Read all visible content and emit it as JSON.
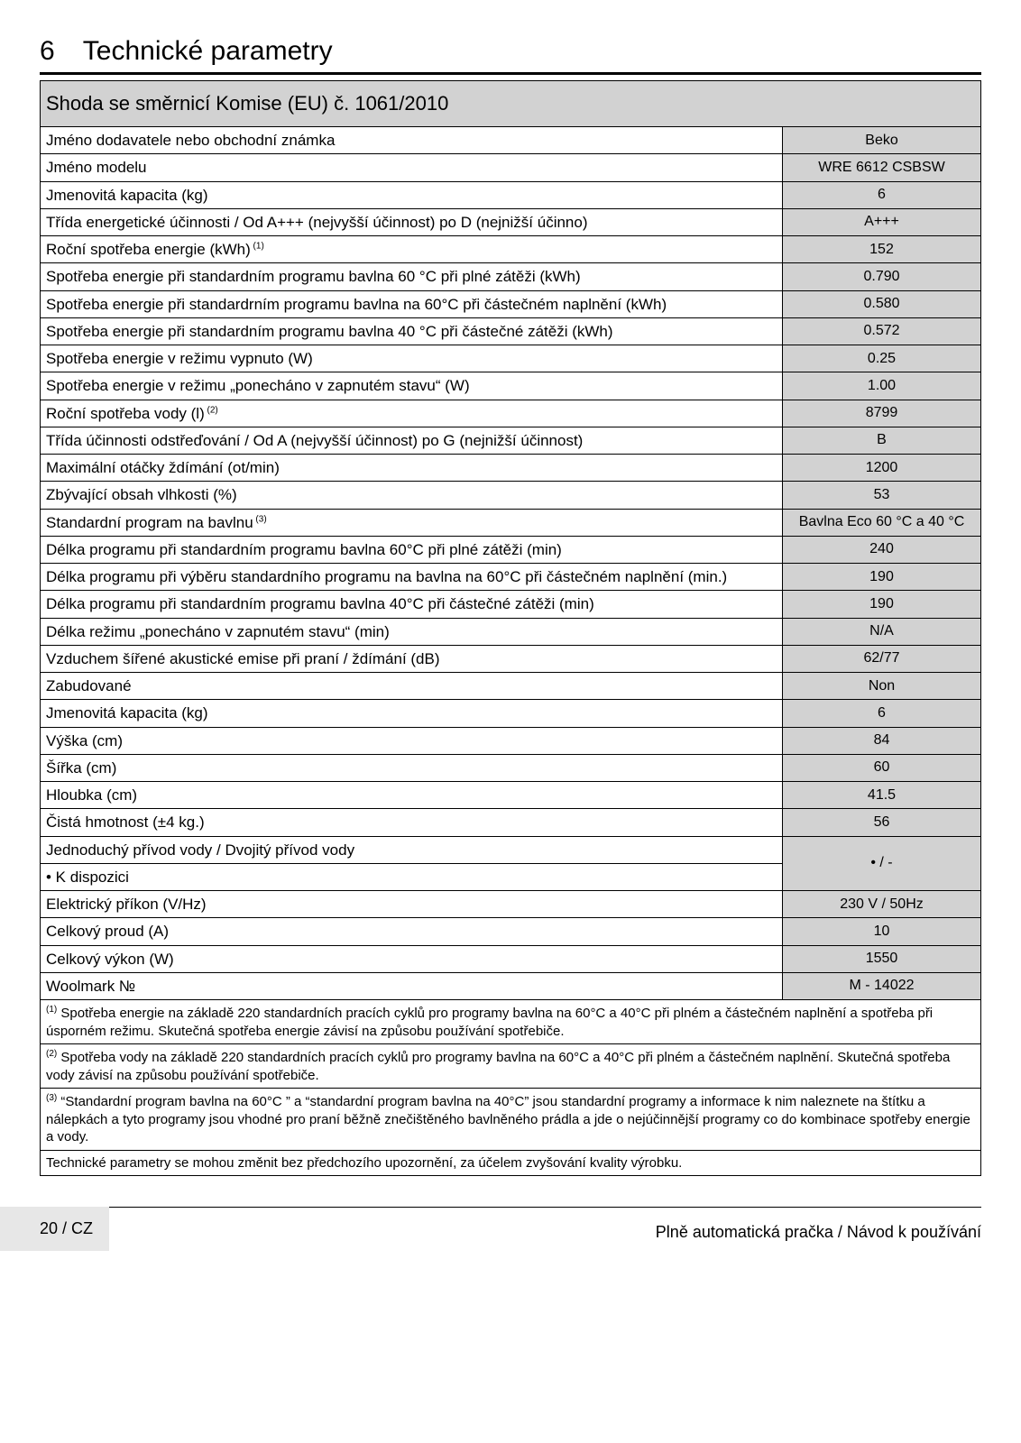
{
  "heading": {
    "number": "6",
    "title": "Technické parametry"
  },
  "table_header": "Shoda se směrnicí Komise (EU) č. 1061/2010",
  "rows": [
    {
      "label": "Jméno dodavatele nebo obchodní znám­ka",
      "value": "Beko"
    },
    {
      "label": "Jméno modelu",
      "value": "WRE 6612 CSBSW"
    },
    {
      "label": "Jmenovitá kapacita (kg)",
      "value": "6"
    },
    {
      "label": "Třída energetické účinnosti / Od A+++ (nejvyšší účinnost) po D (nejnižší účinno)",
      "value": "A+++"
    },
    {
      "label": "Roční spotřeba energie (kWh)",
      "sup": "(1)",
      "value": "152"
    },
    {
      "label": "Spotřeba energie při standardním programu bavlna 60 °C při plné zátěži (kWh)",
      "value": "0.790"
    },
    {
      "label": "Spotřeba energie při standardrním programu bavlna na 60°C při částečném naplnění (kWh)",
      "value": "0.580"
    },
    {
      "label": "Spotřeba energie při standardním programu bavlna 40 °C při částečné zátěži (kWh)",
      "value": "0.572"
    },
    {
      "label": "Spotřeba energie v režimu vypnuto (W)",
      "value": "0.25"
    },
    {
      "label": "Spotřeba energie v režimu „ponecháno v zapnutém stavu“ (W)",
      "value": "1.00"
    },
    {
      "label": "Roční spotřeba vody (l)",
      "sup": "(2)",
      "value": "8799"
    },
    {
      "label": "Třída účinnosti odstřeďování / Od A (nejvyšší účinnost) po G (nejnižší účinnost)",
      "value": "B"
    },
    {
      "label": "Maximální otáčky ždímání (ot/min)",
      "value": "1200"
    },
    {
      "label": "Zbývající obsah vlhkosti (%)",
      "value": "53"
    },
    {
      "label": "Standardní program na bavlnu",
      "sup": "(3)",
      "value": "Bavlna Eco 60 °C a 40 °C"
    },
    {
      "label": "Délka programu při standardním programu bavlna 60°C při plné zátěži (min)",
      "value": "240"
    },
    {
      "label": "Délka programu při výběru standardního programu na bavlna na 60°C při částečném naplnění (min.)",
      "value": "190"
    },
    {
      "label": "Délka programu při standardním programu bavlna 40°C při částečné zátěži (min)",
      "value": "190"
    },
    {
      "label": "Délka režimu „ponecháno v zapnutém stavu“ (min)",
      "value": "N/A"
    },
    {
      "label": "Vzduchem šířené akustické emise při praní / ždímání (dB)",
      "value": "62/77"
    },
    {
      "label": "Zabudované",
      "value": "Non"
    },
    {
      "label": "Jmenovitá kapacita (kg)",
      "value": "6"
    },
    {
      "label": "Výška (cm)",
      "value": "84"
    },
    {
      "label": "Šířka (cm)",
      "value": "60"
    },
    {
      "label": "Hloubka (cm)",
      "value": "41.5"
    },
    {
      "label": "Čistá hmotnost (±4 kg.)",
      "value": "56"
    }
  ],
  "water_inlet": {
    "label": "Jednoduchý přívod vody / Dvojitý přívod vody",
    "sublabel": "• K dispozici",
    "value": "• / -"
  },
  "rows2": [
    {
      "label": "Elektrický příkon (V/Hz)",
      "value": "230 V / 50Hz"
    },
    {
      "label": "Celkový proud (A)",
      "value": "10"
    },
    {
      "label": "Celkový výkon (W)",
      "value": "1550"
    },
    {
      "label": "Woolmark №",
      "value": "M - 14022"
    }
  ],
  "notes": [
    {
      "sup": "(1)",
      "text": " Spotřeba energie na základě 220 standardních pracích cyklů pro programy bavlna na 60°C a 40°C při plném a částečném naplnění a spotřeba při úsporném režimu. Skutečná spotřeba energie závisí na způsobu používání spotřebiče."
    },
    {
      "sup": "(2)",
      "text": " Spotřeba vody na základě 220 standardních pracích cyklů pro programy bavlna na 60°C a 40°C při plném a částečném naplnění. Skutečná spotřeba vody závisí na způsobu používání spotřebiče."
    },
    {
      "sup": "(3)",
      "text": " “Standardní program bavlna na 60°C ” a “standardní program bavlna na 40°C” jsou standardní programy a informace k nim naleznete na štítku a nálepkách a tyto programy jsou vhodné pro praní běžně znečištěného bavlněného prádla a jde o nejúčinnější programy co do kombinace spotřeby energie a vody."
    },
    {
      "text": "Technické parametry se mohou změnit bez předchozího upozornění, za účelem zvyšování kvality výrobku."
    }
  ],
  "footer": {
    "page": "20 / CZ",
    "title": "Plně automatická pračka / Návod k používání"
  },
  "style": {
    "header_bg": "#d2d2d2",
    "value_bg": "#d2d2d2",
    "border_color": "#000000",
    "body_font_size": 17,
    "value_font_size": 16,
    "note_font_size": 15,
    "heading_font_size": 30,
    "table_header_font_size": 22
  }
}
